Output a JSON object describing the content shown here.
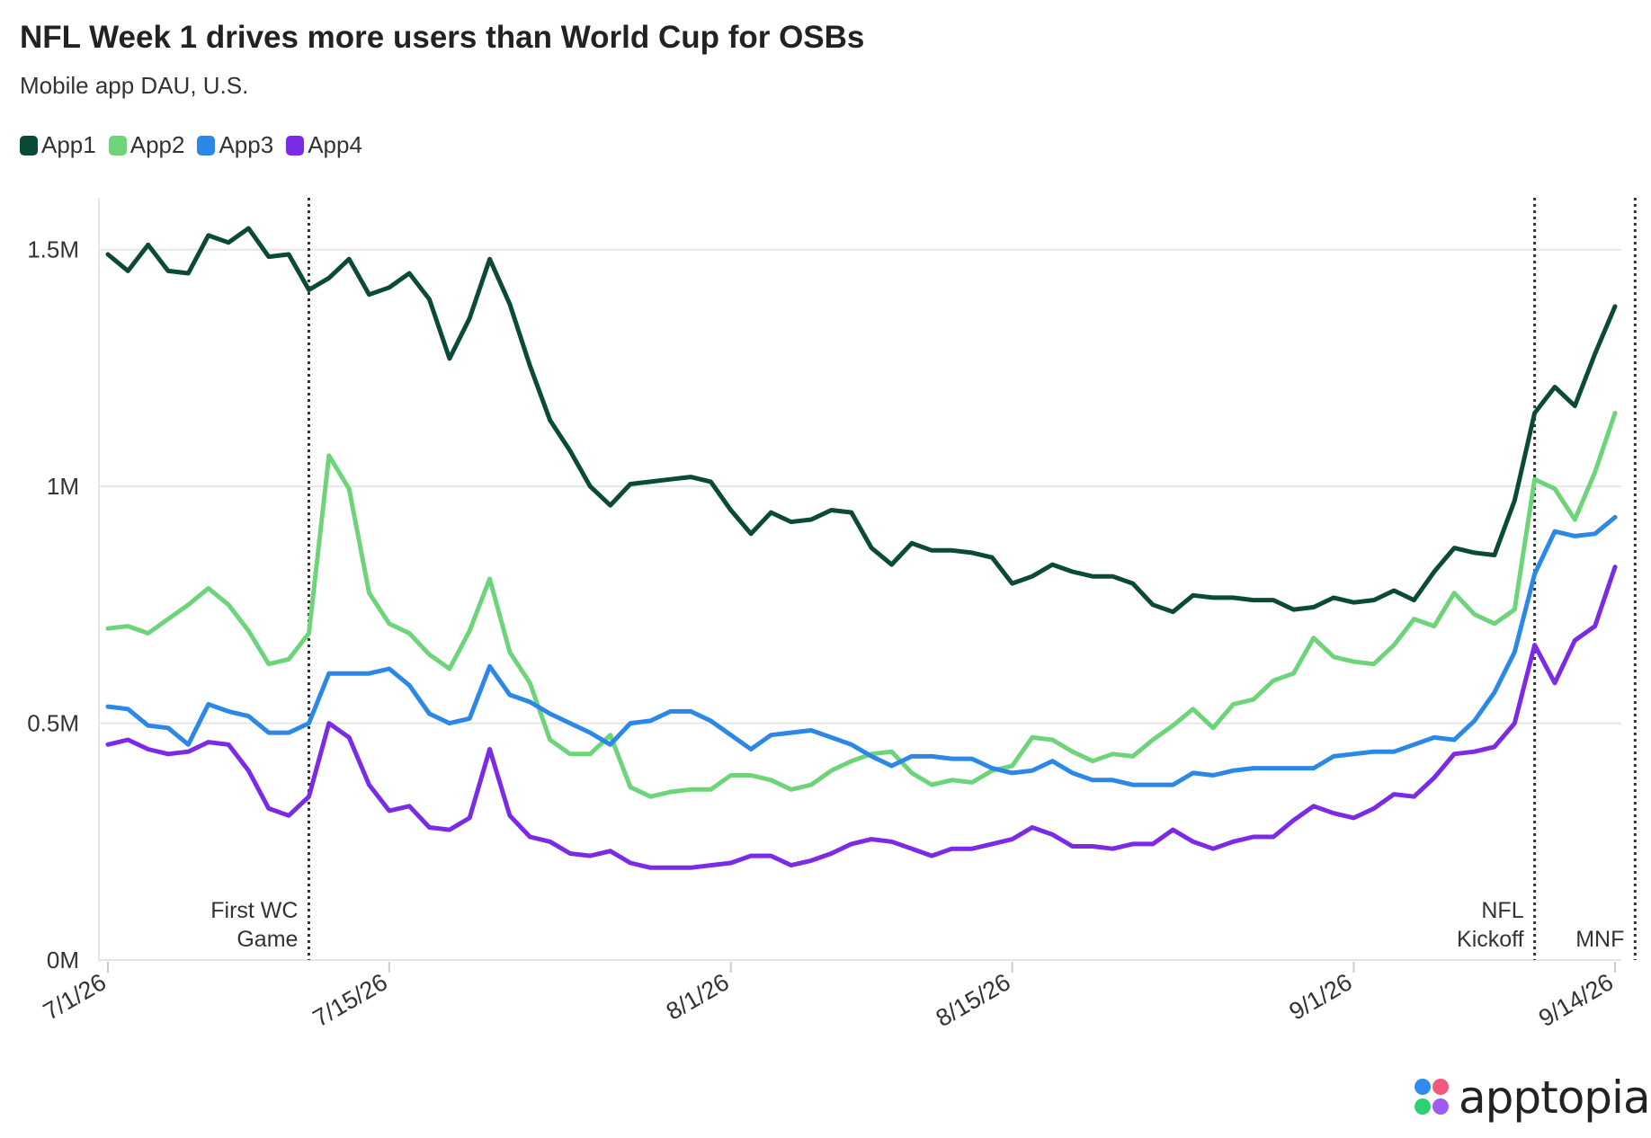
{
  "title": "NFL Week 1 drives more users than World Cup for OSBs",
  "subtitle": "Mobile app DAU, U.S.",
  "logo_text": "apptopia",
  "chart_data": {
    "type": "line",
    "x_start": "2026-07-01",
    "x_end": "2026-09-14",
    "x_tick_labels": [
      "7/1/26",
      "7/15/26",
      "8/1/26",
      "8/15/26",
      "9/1/26",
      "9/14/26"
    ],
    "x_tick_dates": [
      "2026-07-01",
      "2026-07-15",
      "2026-08-01",
      "2026-08-15",
      "2026-09-01",
      "2026-09-14"
    ],
    "y_tick_labels": [
      "0M",
      "0.5M",
      "1M",
      "1.5M"
    ],
    "y_tick_values": [
      0,
      500000,
      1000000,
      1500000
    ],
    "ylim": [
      0,
      1600000
    ],
    "grid": true,
    "legend_position": "top-left",
    "annotations": [
      {
        "date": "2026-07-11",
        "lines": [
          "First WC",
          "Game"
        ],
        "align": "left"
      },
      {
        "date": "2026-09-10",
        "lines": [
          "NFL",
          "Kickoff"
        ],
        "align": "left"
      },
      {
        "date": "2026-09-15",
        "lines": [
          "MNF"
        ],
        "align": "left"
      }
    ],
    "series": [
      {
        "name": "App1",
        "color": "#0b4a38",
        "values": [
          1490000,
          1455000,
          1510000,
          1455000,
          1450000,
          1530000,
          1515000,
          1545000,
          1485000,
          1490000,
          1415000,
          1440000,
          1480000,
          1405000,
          1420000,
          1450000,
          1395000,
          1270000,
          1355000,
          1480000,
          1385000,
          1255000,
          1140000,
          1075000,
          1000000,
          960000,
          1005000,
          1010000,
          1015000,
          1020000,
          1010000,
          950000,
          900000,
          945000,
          925000,
          930000,
          950000,
          945000,
          870000,
          835000,
          880000,
          865000,
          865000,
          860000,
          850000,
          795000,
          810000,
          835000,
          820000,
          810000,
          810000,
          795000,
          750000,
          735000,
          770000,
          765000,
          765000,
          760000,
          760000,
          740000,
          745000,
          765000,
          755000,
          760000,
          780000,
          760000,
          820000,
          870000,
          860000,
          855000,
          970000,
          1155000,
          1210000,
          1170000,
          1280000,
          1380000
        ]
      },
      {
        "name": "App2",
        "color": "#6ed47a",
        "values": [
          700000,
          705000,
          690000,
          720000,
          750000,
          785000,
          750000,
          695000,
          625000,
          635000,
          690000,
          1065000,
          995000,
          775000,
          710000,
          690000,
          645000,
          615000,
          695000,
          805000,
          650000,
          585000,
          465000,
          435000,
          435000,
          475000,
          365000,
          345000,
          355000,
          360000,
          360000,
          390000,
          390000,
          380000,
          360000,
          370000,
          400000,
          420000,
          435000,
          440000,
          395000,
          370000,
          380000,
          375000,
          400000,
          410000,
          470000,
          465000,
          440000,
          420000,
          435000,
          430000,
          465000,
          495000,
          530000,
          490000,
          540000,
          550000,
          590000,
          605000,
          680000,
          640000,
          630000,
          625000,
          665000,
          720000,
          705000,
          775000,
          730000,
          710000,
          740000,
          1015000,
          995000,
          930000,
          1030000,
          1155000
        ]
      },
      {
        "name": "App3",
        "color": "#2b88e6",
        "values": [
          535000,
          530000,
          495000,
          490000,
          455000,
          540000,
          525000,
          515000,
          480000,
          480000,
          500000,
          605000,
          605000,
          605000,
          615000,
          580000,
          520000,
          500000,
          510000,
          620000,
          560000,
          545000,
          520000,
          500000,
          480000,
          455000,
          500000,
          505000,
          525000,
          525000,
          505000,
          475000,
          445000,
          475000,
          480000,
          485000,
          470000,
          455000,
          430000,
          410000,
          430000,
          430000,
          425000,
          425000,
          405000,
          395000,
          400000,
          420000,
          395000,
          380000,
          380000,
          370000,
          370000,
          370000,
          395000,
          390000,
          400000,
          405000,
          405000,
          405000,
          405000,
          430000,
          435000,
          440000,
          440000,
          455000,
          470000,
          465000,
          505000,
          565000,
          650000,
          815000,
          905000,
          895000,
          900000,
          935000
        ]
      },
      {
        "name": "App4",
        "color": "#7b2ae6",
        "values": [
          455000,
          465000,
          445000,
          435000,
          440000,
          460000,
          455000,
          400000,
          320000,
          305000,
          345000,
          500000,
          470000,
          370000,
          315000,
          325000,
          280000,
          275000,
          300000,
          445000,
          305000,
          260000,
          250000,
          225000,
          220000,
          230000,
          205000,
          195000,
          195000,
          195000,
          200000,
          205000,
          220000,
          220000,
          200000,
          210000,
          225000,
          245000,
          255000,
          250000,
          235000,
          220000,
          235000,
          235000,
          245000,
          255000,
          280000,
          265000,
          240000,
          240000,
          235000,
          245000,
          245000,
          275000,
          250000,
          235000,
          250000,
          260000,
          260000,
          295000,
          325000,
          310000,
          300000,
          320000,
          350000,
          345000,
          385000,
          435000,
          440000,
          450000,
          500000,
          665000,
          585000,
          675000,
          705000,
          830000
        ]
      }
    ]
  }
}
